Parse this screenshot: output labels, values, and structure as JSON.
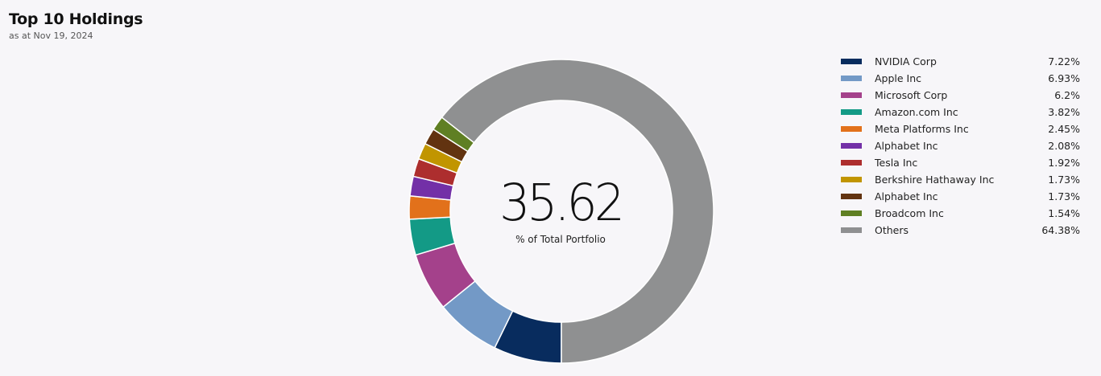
{
  "header": {
    "title": "Top 10 Holdings",
    "subtitle": "as at Nov 19, 2024"
  },
  "chart_data": {
    "type": "pie",
    "variant": "donut",
    "center_value": "35.62",
    "center_label": "% of Total Portfolio",
    "legend_position": "right",
    "slices": [
      {
        "name": "NVIDIA Corp",
        "value": 7.22,
        "label": "7.22%",
        "color": "#082c5e"
      },
      {
        "name": "Apple Inc",
        "value": 6.93,
        "label": "6.93%",
        "color": "#7399c6"
      },
      {
        "name": "Microsoft Corp",
        "value": 6.2,
        "label": "6.2%",
        "color": "#a4418b"
      },
      {
        "name": "Amazon.com Inc",
        "value": 3.82,
        "label": "3.82%",
        "color": "#139a86"
      },
      {
        "name": "Meta Platforms Inc",
        "value": 2.45,
        "label": "2.45%",
        "color": "#e2711b"
      },
      {
        "name": "Alphabet Inc",
        "value": 2.08,
        "label": "2.08%",
        "color": "#7330a7"
      },
      {
        "name": "Tesla Inc",
        "value": 1.92,
        "label": "1.92%",
        "color": "#ad2e2e"
      },
      {
        "name": "Berkshire Hathaway Inc",
        "value": 1.73,
        "label": "1.73%",
        "color": "#c19500"
      },
      {
        "name": "Alphabet Inc",
        "value": 1.73,
        "label": "1.73%",
        "color": "#623310"
      },
      {
        "name": "Broadcom Inc",
        "value": 1.54,
        "label": "1.54%",
        "color": "#5f7f23"
      },
      {
        "name": "Others",
        "value": 64.38,
        "label": "64.38%",
        "color": "#8f9091"
      }
    ]
  }
}
